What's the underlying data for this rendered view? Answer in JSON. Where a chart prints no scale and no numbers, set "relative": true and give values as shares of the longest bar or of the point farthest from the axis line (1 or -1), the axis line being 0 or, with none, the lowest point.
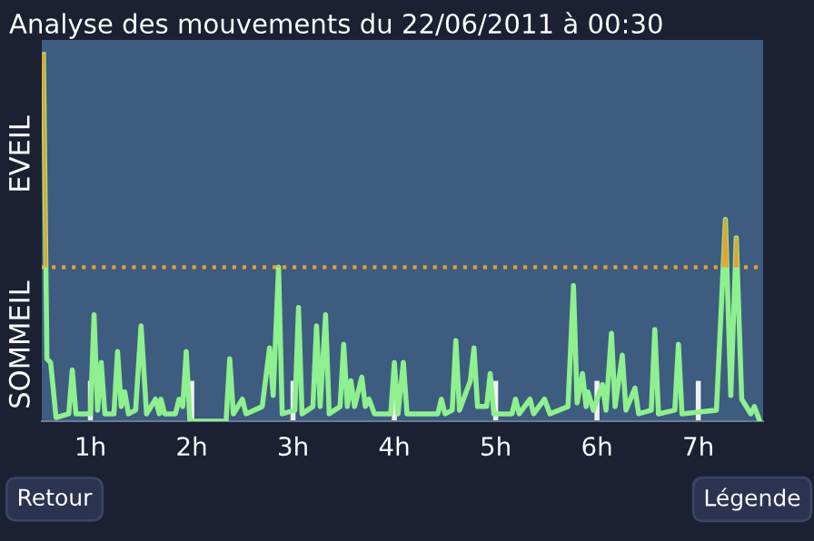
{
  "chart_data": {
    "type": "line",
    "title": "Analyse des mouvements du 22/06/2011 à 00:30",
    "relative": true,
    "tick_labels": "x",
    "grid": false,
    "legend": false,
    "marker": "none",
    "line_style": "solid",
    "xlim": [
      0.52,
      7.64
    ],
    "xticks": [
      {
        "value": 1,
        "label": "1h"
      },
      {
        "value": 2,
        "label": "2h"
      },
      {
        "value": 3,
        "label": "3h"
      },
      {
        "value": 4,
        "label": "4h"
      },
      {
        "value": 5,
        "label": "5h"
      },
      {
        "value": 6,
        "label": "6h"
      },
      {
        "value": 7,
        "label": "7h"
      }
    ],
    "ref_lines": [
      {
        "axis": "y",
        "value": 0.42,
        "color": "#e8a030",
        "line_style": "dotted"
      }
    ],
    "annotations": [
      "EVEIL",
      "SOMMEIL",
      "Retour",
      "Légende"
    ],
    "series": [
      {
        "color": "#8ef08e",
        "x": [
          0.536,
          0.571,
          0.607,
          0.661,
          0.786,
          0.821,
          0.857,
          1.0,
          1.036,
          1.071,
          1.107,
          1.143,
          1.232,
          1.268,
          1.304,
          1.339,
          1.375,
          1.446,
          1.5,
          1.554,
          1.643,
          1.679,
          1.696,
          1.732,
          1.839,
          1.875,
          1.911,
          1.946,
          1.982,
          2.339,
          2.375,
          2.411,
          2.5,
          2.536,
          2.696,
          2.768,
          2.804,
          2.857,
          2.893,
          3.018,
          3.054,
          3.089,
          3.196,
          3.232,
          3.268,
          3.321,
          3.357,
          3.464,
          3.5,
          3.536,
          3.571,
          3.607,
          3.679,
          3.714,
          3.75,
          3.804,
          3.964,
          4.0,
          4.036,
          4.089,
          4.125,
          4.429,
          4.464,
          4.5,
          4.571,
          4.607,
          4.643,
          4.75,
          4.786,
          4.821,
          4.911,
          4.946,
          4.982,
          5.161,
          5.196,
          5.232,
          5.339,
          5.375,
          5.482,
          5.536,
          5.714,
          5.768,
          5.804,
          5.857,
          5.893,
          5.911,
          5.964,
          6.054,
          6.089,
          6.143,
          6.179,
          6.25,
          6.286,
          6.375,
          6.411,
          6.536,
          6.571,
          6.607,
          6.768,
          6.804,
          6.839,
          7.179,
          7.268,
          7.321,
          7.375,
          7.429,
          7.518,
          7.554,
          7.607
        ],
        "values": [
          1.0,
          0.17,
          0.16,
          0.01,
          0.02,
          0.14,
          0.02,
          0.02,
          0.29,
          0.03,
          0.16,
          0.02,
          0.02,
          0.19,
          0.04,
          0.08,
          0.02,
          0.03,
          0.26,
          0.02,
          0.06,
          0.02,
          0.06,
          0.02,
          0.02,
          0.06,
          0.04,
          0.19,
          0.0,
          0.0,
          0.17,
          0.02,
          0.06,
          0.02,
          0.04,
          0.2,
          0.07,
          0.42,
          0.02,
          0.03,
          0.31,
          0.02,
          0.04,
          0.26,
          0.04,
          0.29,
          0.02,
          0.04,
          0.21,
          0.04,
          0.11,
          0.04,
          0.12,
          0.04,
          0.06,
          0.02,
          0.02,
          0.16,
          0.02,
          0.16,
          0.02,
          0.02,
          0.06,
          0.02,
          0.03,
          0.22,
          0.03,
          0.11,
          0.2,
          0.04,
          0.04,
          0.13,
          0.02,
          0.02,
          0.06,
          0.02,
          0.06,
          0.02,
          0.06,
          0.02,
          0.04,
          0.37,
          0.05,
          0.13,
          0.04,
          0.08,
          0.03,
          0.1,
          0.03,
          0.24,
          0.04,
          0.18,
          0.03,
          0.09,
          0.02,
          0.03,
          0.25,
          0.02,
          0.03,
          0.21,
          0.02,
          0.03,
          0.55,
          0.07,
          0.5,
          0.06,
          0.02,
          0.04,
          0.0
        ]
      }
    ]
  }
}
